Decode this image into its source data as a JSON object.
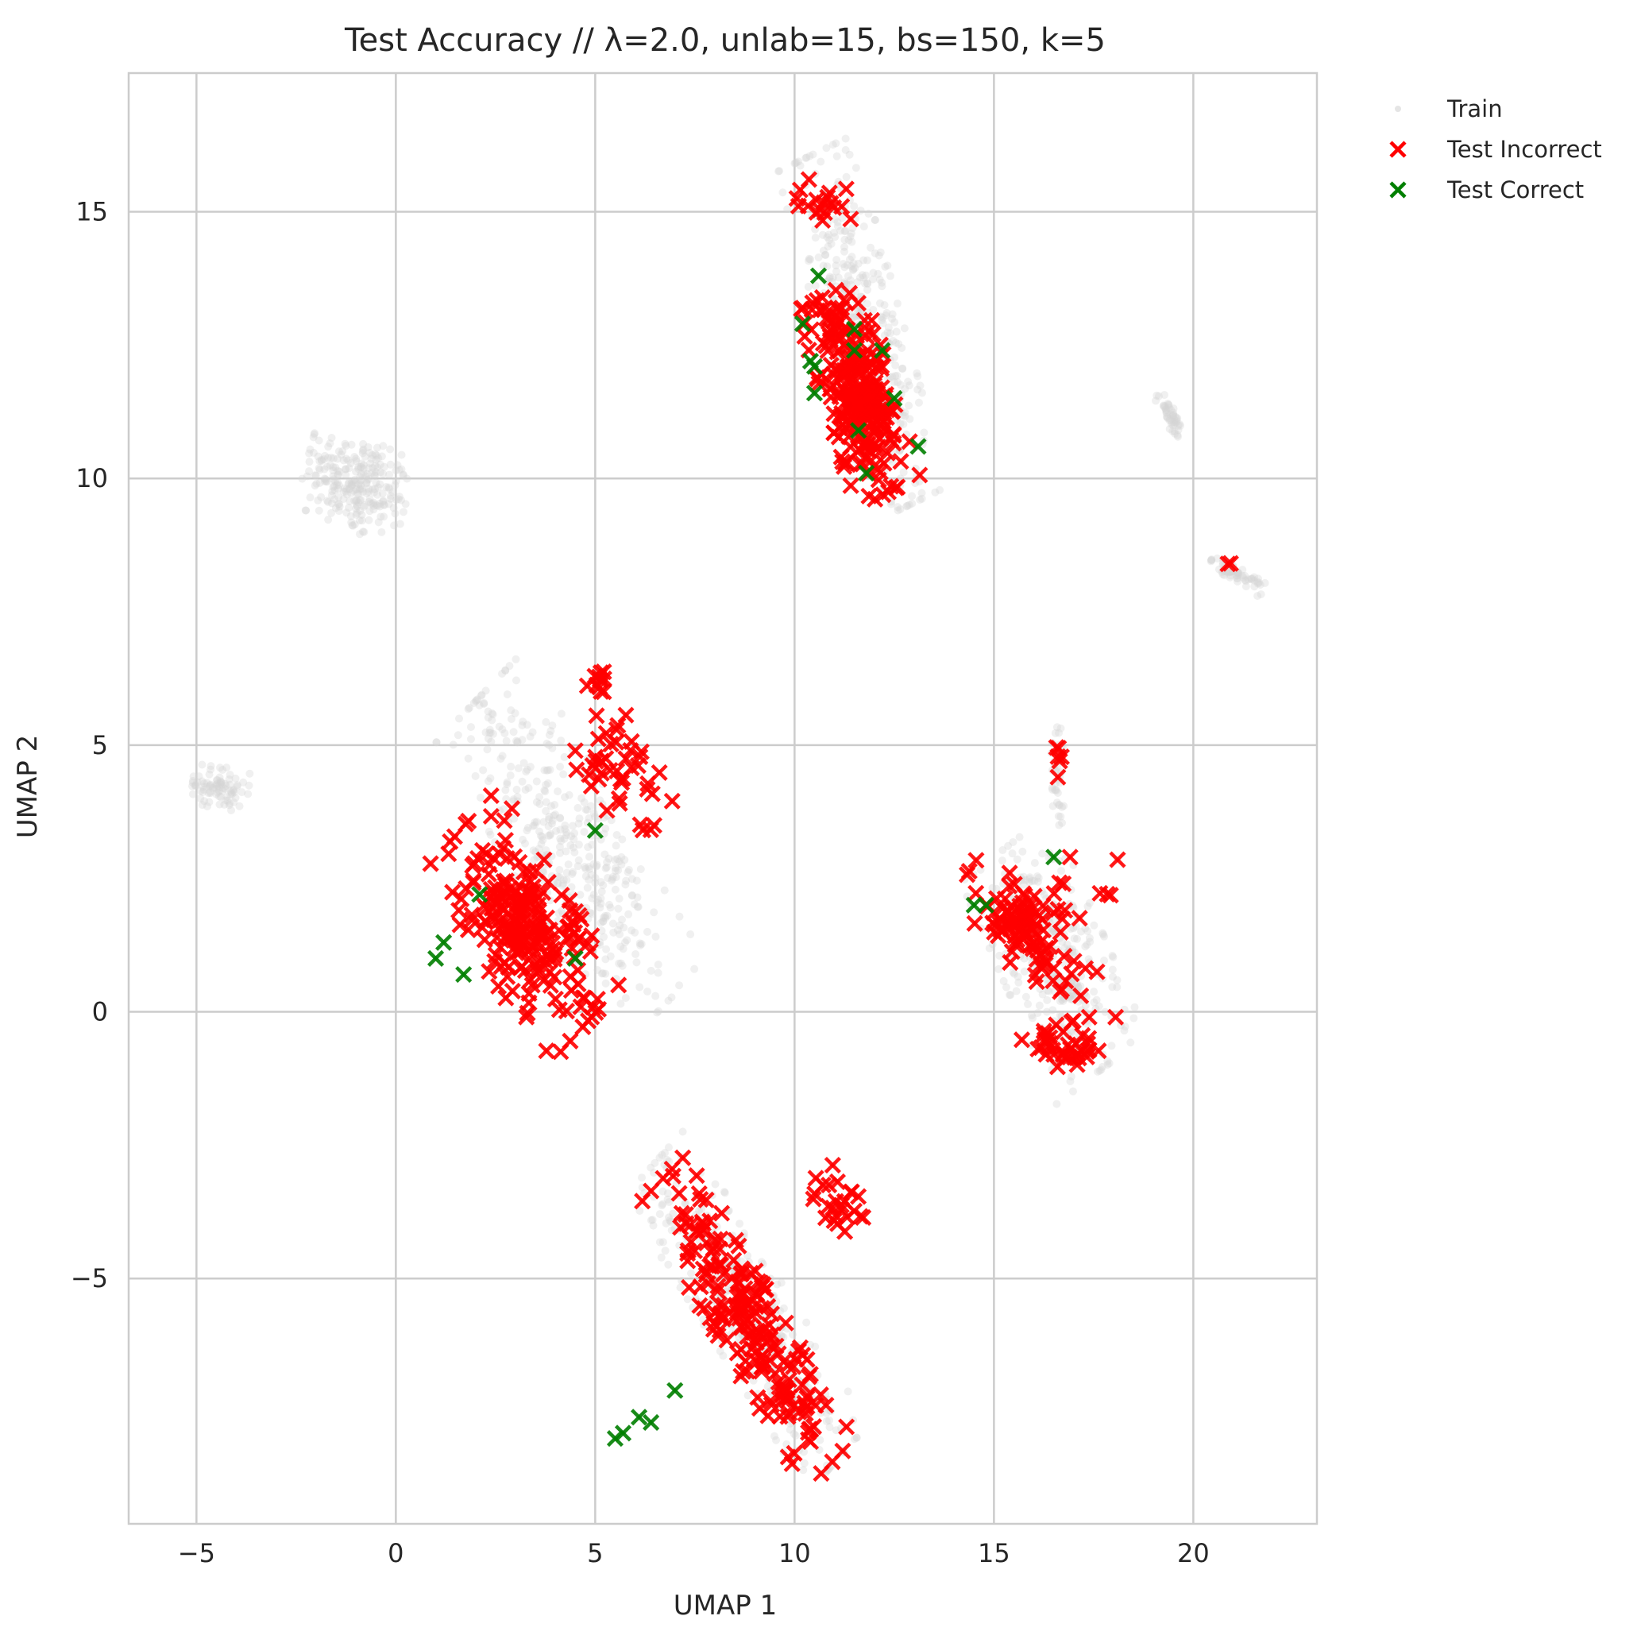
{
  "chart_data": {
    "type": "scatter",
    "title": "Test Accuracy // λ=2.0, unlab=15, bs=150, k=5",
    "xlabel": "UMAP 1",
    "ylabel": "UMAP 2",
    "xlim": [
      -6.7,
      23.1
    ],
    "ylim": [
      -9.6,
      17.6
    ],
    "xticks": [
      -5,
      0,
      5,
      10,
      15,
      20
    ],
    "xtick_labels": [
      "−5",
      "0",
      "5",
      "10",
      "15",
      "20"
    ],
    "yticks": [
      -5,
      0,
      5,
      10,
      15
    ],
    "ytick_labels": [
      "−5",
      "0",
      "5",
      "10",
      "15"
    ],
    "grid": true,
    "legend_position": "outside-top-right",
    "colors": {
      "train": "#d3d3d3",
      "incorrect": "#ff0000",
      "correct": "#007f00"
    },
    "series": [
      {
        "name": "Train",
        "marker": "dot",
        "clusters": [
          {
            "cx": -1.0,
            "cy": 9.9,
            "rx": 1.3,
            "ry": 0.9,
            "rot": -20,
            "n": 260
          },
          {
            "cx": -4.4,
            "cy": 4.2,
            "rx": 0.7,
            "ry": 0.4,
            "rot": -10,
            "n": 90
          },
          {
            "cx": 19.4,
            "cy": 11.2,
            "rx": 0.5,
            "ry": 0.15,
            "rot": -55,
            "n": 50
          },
          {
            "cx": 21.1,
            "cy": 8.2,
            "rx": 0.7,
            "ry": 0.15,
            "rot": -25,
            "n": 60
          },
          {
            "cx": 11.7,
            "cy": 12.8,
            "rx": 3.5,
            "ry": 1.0,
            "rot": -70,
            "n": 420
          },
          {
            "cx": 4.4,
            "cy": 3.0,
            "rx": 3.7,
            "ry": 1.4,
            "rot": -52,
            "n": 420
          },
          {
            "cx": 16.5,
            "cy": 1.0,
            "rx": 2.4,
            "ry": 1.3,
            "rot": -60,
            "n": 340
          },
          {
            "cx": 16.6,
            "cy": 4.5,
            "rx": 1.0,
            "ry": 0.15,
            "rot": -88,
            "n": 40
          },
          {
            "cx": 8.8,
            "cy": -5.6,
            "rx": 3.6,
            "ry": 1.0,
            "rot": -50,
            "n": 380
          }
        ]
      },
      {
        "name": "Test Incorrect",
        "marker": "x",
        "clusters": [
          {
            "cx": 11.6,
            "cy": 11.6,
            "rx": 2.0,
            "ry": 0.85,
            "rot": -68,
            "n": 260
          },
          {
            "cx": 10.6,
            "cy": 15.2,
            "rx": 0.9,
            "ry": 0.4,
            "rot": -15,
            "n": 18
          },
          {
            "cx": 3.2,
            "cy": 1.6,
            "rx": 2.4,
            "ry": 1.2,
            "rot": -50,
            "n": 230
          },
          {
            "cx": 5.6,
            "cy": 4.6,
            "rx": 1.4,
            "ry": 0.8,
            "rot": -45,
            "n": 45
          },
          {
            "cx": 5.1,
            "cy": 6.2,
            "rx": 0.3,
            "ry": 0.2,
            "rot": 0,
            "n": 10
          },
          {
            "cx": 15.6,
            "cy": 1.6,
            "rx": 1.6,
            "ry": 0.7,
            "rot": -40,
            "n": 90
          },
          {
            "cx": 16.9,
            "cy": -0.6,
            "rx": 1.2,
            "ry": 0.5,
            "rot": 0,
            "n": 40
          },
          {
            "cx": 16.8,
            "cy": 1.6,
            "rx": 1.3,
            "ry": 1.3,
            "rot": 0,
            "n": 25
          },
          {
            "cx": 16.6,
            "cy": 4.8,
            "rx": 0.7,
            "ry": 0.1,
            "rot": -85,
            "n": 6
          },
          {
            "cx": 8.8,
            "cy": -5.8,
            "rx": 3.4,
            "ry": 0.75,
            "rot": -52,
            "n": 200
          },
          {
            "cx": 11.1,
            "cy": -3.6,
            "rx": 0.7,
            "ry": 0.5,
            "rot": -60,
            "n": 25
          },
          {
            "cx": 20.8,
            "cy": 8.4,
            "rx": 0.15,
            "ry": 0.08,
            "rot": 0,
            "n": 2
          }
        ]
      },
      {
        "name": "Test Correct",
        "marker": "x",
        "points": [
          [
            10.2,
            12.9
          ],
          [
            10.4,
            12.2
          ],
          [
            10.5,
            12.1
          ],
          [
            10.5,
            11.6
          ],
          [
            10.6,
            13.8
          ],
          [
            11.5,
            12.8
          ],
          [
            11.6,
            10.9
          ],
          [
            11.5,
            12.4
          ],
          [
            11.8,
            10.1
          ],
          [
            12.2,
            12.4
          ],
          [
            12.5,
            11.5
          ],
          [
            13.1,
            10.6
          ],
          [
            1.0,
            1.0
          ],
          [
            1.2,
            1.3
          ],
          [
            1.7,
            0.7
          ],
          [
            2.1,
            2.2
          ],
          [
            4.5,
            1.0
          ],
          [
            5.0,
            3.4
          ],
          [
            14.5,
            2.0
          ],
          [
            14.8,
            2.0
          ],
          [
            16.5,
            2.9
          ],
          [
            5.5,
            -8.0
          ],
          [
            5.7,
            -7.9
          ],
          [
            6.4,
            -7.7
          ],
          [
            6.1,
            -7.6
          ],
          [
            7.0,
            -7.1
          ]
        ]
      }
    ]
  }
}
